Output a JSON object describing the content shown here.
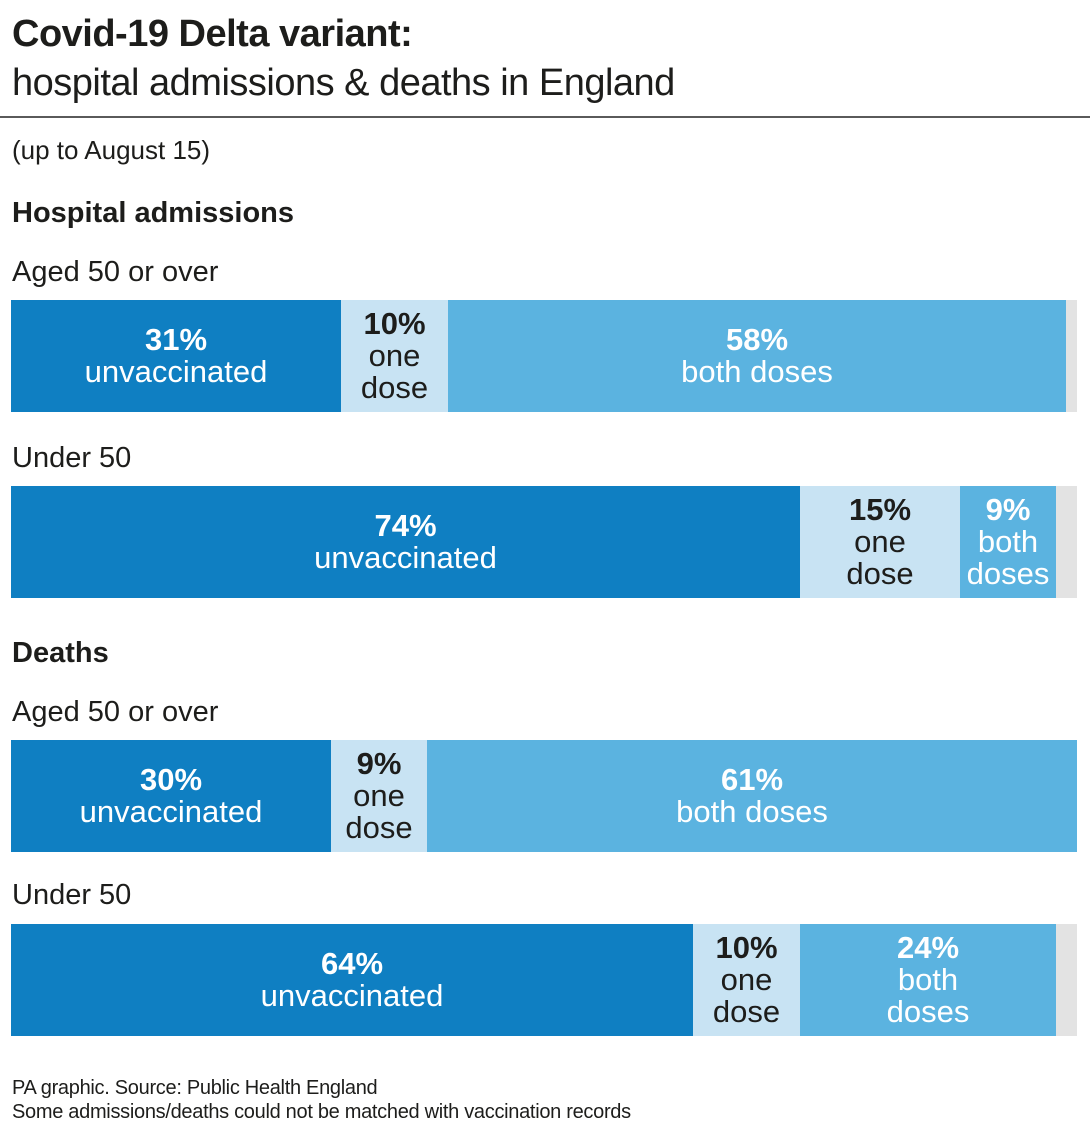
{
  "title": "Covid-19 Delta variant:",
  "subtitle": "hospital admissions & deaths in England",
  "date_note": "(up to August 15)",
  "footer": {
    "source": "PA graphic. Source: Public Health England",
    "note": "Some admissions/deaths could not be matched with vaccination records"
  },
  "colors": {
    "unvaccinated": "#0f7fc2",
    "one_dose": "#c8e3f3",
    "both_doses": "#5bb3e0",
    "unmatched": "#e3e3e3"
  },
  "chart_data": {
    "type": "bar",
    "orientation": "horizontal-stacked",
    "categories": [
      "unvaccinated",
      "one dose",
      "both doses"
    ],
    "sections": [
      {
        "name": "Hospital admissions",
        "groups": [
          {
            "name": "Aged 50 or over",
            "segments": [
              {
                "key": "unvaccinated",
                "value": 31,
                "pct_label": "31%",
                "label_lines": [
                  "unvaccinated"
                ]
              },
              {
                "key": "one_dose",
                "value": 10,
                "pct_label": "10%",
                "label_lines": [
                  "one",
                  "dose"
                ]
              },
              {
                "key": "both_doses",
                "value": 58,
                "pct_label": "58%",
                "label_lines": [
                  "both doses"
                ]
              }
            ]
          },
          {
            "name": "Under 50",
            "segments": [
              {
                "key": "unvaccinated",
                "value": 74,
                "pct_label": "74%",
                "label_lines": [
                  "unvaccinated"
                ]
              },
              {
                "key": "one_dose",
                "value": 15,
                "pct_label": "15%",
                "label_lines": [
                  "one",
                  "dose"
                ]
              },
              {
                "key": "both_doses",
                "value": 9,
                "pct_label": "9%",
                "label_lines": [
                  "both",
                  "doses"
                ]
              }
            ]
          }
        ]
      },
      {
        "name": "Deaths",
        "groups": [
          {
            "name": "Aged 50 or over",
            "segments": [
              {
                "key": "unvaccinated",
                "value": 30,
                "pct_label": "30%",
                "label_lines": [
                  "unvaccinated"
                ]
              },
              {
                "key": "one_dose",
                "value": 9,
                "pct_label": "9%",
                "label_lines": [
                  "one",
                  "dose"
                ]
              },
              {
                "key": "both_doses",
                "value": 61,
                "pct_label": "61%",
                "label_lines": [
                  "both doses"
                ]
              }
            ]
          },
          {
            "name": "Under 50",
            "segments": [
              {
                "key": "unvaccinated",
                "value": 64,
                "pct_label": "64%",
                "label_lines": [
                  "unvaccinated"
                ]
              },
              {
                "key": "one_dose",
                "value": 10,
                "pct_label": "10%",
                "label_lines": [
                  "one",
                  "dose"
                ]
              },
              {
                "key": "both_doses",
                "value": 24,
                "pct_label": "24%",
                "label_lines": [
                  "both",
                  "doses"
                ]
              }
            ]
          }
        ]
      }
    ],
    "total": 100
  }
}
